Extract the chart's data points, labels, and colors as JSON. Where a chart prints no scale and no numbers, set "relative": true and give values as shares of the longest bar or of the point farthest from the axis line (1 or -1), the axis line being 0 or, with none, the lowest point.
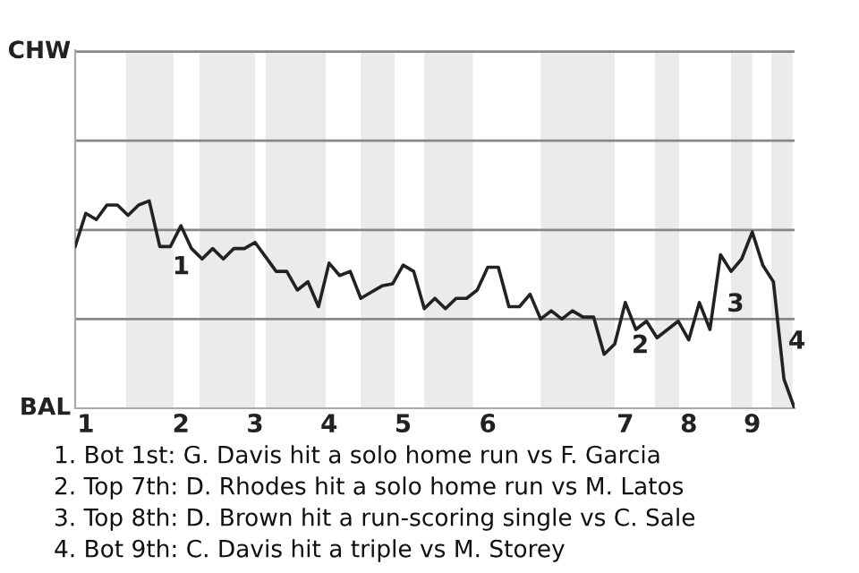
{
  "chart_data": {
    "type": "line",
    "relative": true,
    "categories": [
      null,
      "1",
      null,
      null,
      null,
      null,
      null,
      null,
      null,
      null,
      "2",
      null,
      null,
      null,
      null,
      null,
      null,
      "3",
      null,
      null,
      null,
      null,
      null,
      null,
      "4",
      null,
      null,
      null,
      null,
      null,
      null,
      "5",
      null,
      null,
      null,
      null,
      null,
      null,
      null,
      "6",
      null,
      null,
      null,
      null,
      null,
      null,
      null,
      null,
      null,
      null,
      null,
      null,
      "7",
      null,
      null,
      null,
      null,
      null,
      "8",
      null,
      null,
      null,
      null,
      null,
      "9",
      null,
      null,
      null,
      null
    ],
    "series": [
      {
        "color": "#222222",
        "values": [
          0.78,
          0.94,
          0.91,
          0.98,
          0.98,
          0.93,
          0.98,
          1,
          0.78,
          0.78,
          0.88,
          0.77,
          0.72,
          0.77,
          0.72,
          0.77,
          0.77,
          0.8,
          0.73,
          0.66,
          0.66,
          0.57,
          0.61,
          0.49,
          0.7,
          0.64,
          0.66,
          0.53,
          0.56,
          0.59,
          0.6,
          0.69,
          0.66,
          0.48,
          0.53,
          0.48,
          0.53,
          0.53,
          0.57,
          0.68,
          0.68,
          0.49,
          0.49,
          0.55,
          0.43,
          0.47,
          0.43,
          0.47,
          0.44,
          0.44,
          0.26,
          0.31,
          0.51,
          0.38,
          0.42,
          0.34,
          0.38,
          0.42,
          0.33,
          0.51,
          0.38,
          0.74,
          0.66,
          0.72,
          0.85,
          0.69,
          0.61,
          0.14,
          0
        ]
      }
    ],
    "marker": "none",
    "line_style": "solid",
    "ref_lines": [
      {
        "axis": "y",
        "value": 0.43,
        "label": null,
        "color": "#888888"
      },
      {
        "axis": "y",
        "value": 0.86,
        "label": null,
        "color": "#888888"
      },
      {
        "axis": "y",
        "value": 1.29,
        "label": null,
        "color": "#888888"
      },
      {
        "axis": "y",
        "value": 1.72,
        "label": "CHW",
        "color": "#888888"
      }
    ],
    "annotations": [
      "BAL",
      "1",
      "2",
      "3",
      "4",
      "1. Bot 1st: G. Davis hit a solo home run vs F. Garcia",
      "2. Top 7th: D. Rhodes hit a solo home run vs M. Latos",
      "3. Top 8th: D. Brown hit a run-scoring single vs C. Sale",
      "4. Bot 9th: C. Davis hit a triple vs M. Storey"
    ]
  }
}
